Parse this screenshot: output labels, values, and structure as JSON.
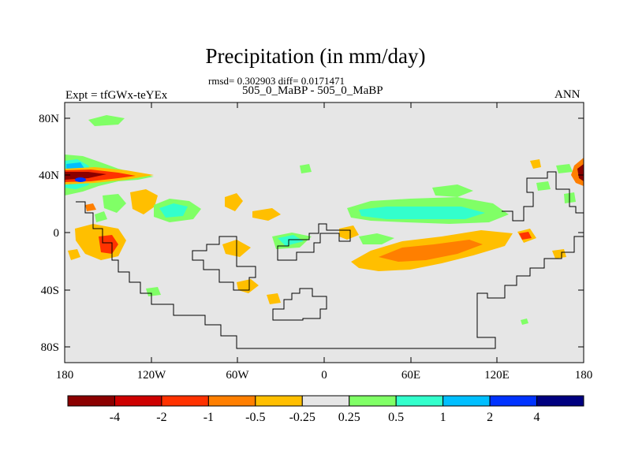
{
  "title": "Precipitation (in mm/day)",
  "stats": "rmsd= 0.302903 diff= 0.0171471",
  "experiment": "Expt = tfGWx-teYEx",
  "cases": "505_0_MaBP - 505_0_MaBP",
  "season": "ANN",
  "map": {
    "lat_ticks": [
      "80N",
      "40N",
      "0",
      "40S",
      "80S"
    ],
    "lon_ticks": [
      "180",
      "120W",
      "60W",
      "0",
      "60E",
      "120E",
      "180"
    ],
    "background_color": "#e6e6e6"
  },
  "colorbar": {
    "labels": [
      "-4",
      "-2",
      "-1",
      "-0.5",
      "-0.25",
      "0.25",
      "0.5",
      "1",
      "2",
      "4"
    ],
    "colors": [
      "#8b0000",
      "#cd0000",
      "#ff3200",
      "#ff7f00",
      "#ffbf00",
      "#e6e6e6",
      "#80ff66",
      "#33ffcc",
      "#00bfff",
      "#0033ff",
      "#000080"
    ]
  }
}
